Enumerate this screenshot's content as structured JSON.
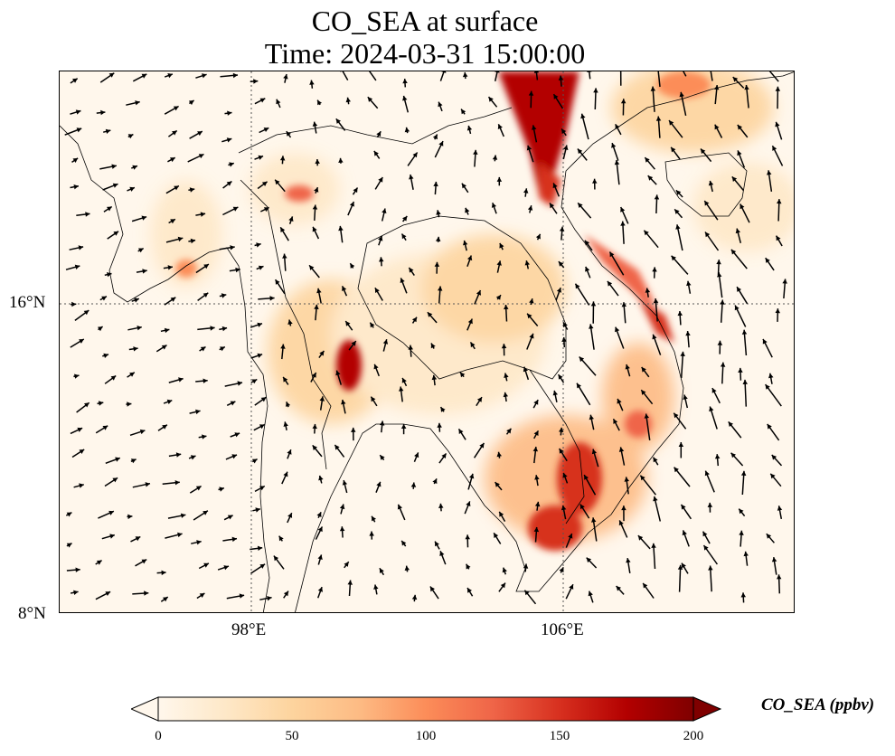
{
  "title": {
    "line1": "CO_SEA at surface",
    "line2": "Time: 2024-03-31 15:00:00"
  },
  "axes": {
    "lat_ticks": [
      "16°N",
      "8°N"
    ],
    "lon_ticks": [
      "98°E",
      "106°E"
    ]
  },
  "colorbar": {
    "label": "CO_SEA (ppbv)",
    "ticks": [
      "0",
      "50",
      "100",
      "150",
      "200"
    ],
    "min": 0,
    "max": 200,
    "extend": "both",
    "colormap": "OrRd",
    "colors": [
      "#fff7ec",
      "#fee8c8",
      "#fdd49e",
      "#fdbb84",
      "#fc8d59",
      "#ef6548",
      "#d7301f",
      "#b30000",
      "#7f0000"
    ]
  },
  "map": {
    "projection": "PlateCarree",
    "gridlines": "dotted",
    "features": [
      "coastlines",
      "country borders",
      "wind vectors"
    ]
  }
}
